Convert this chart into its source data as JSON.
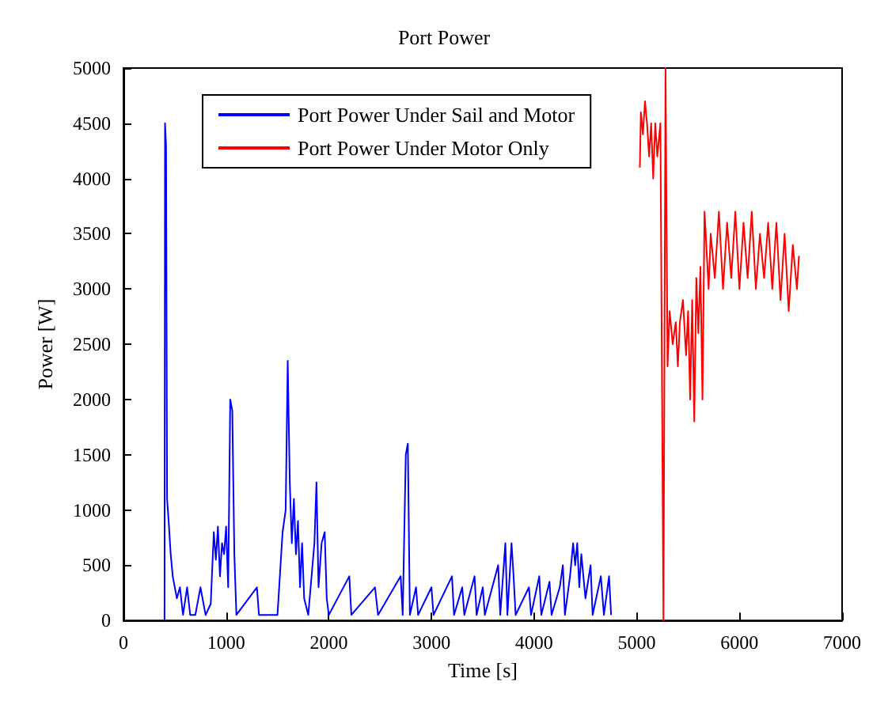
{
  "chart_data": {
    "type": "line",
    "title": "Port Power",
    "xlabel": "Time [s]",
    "ylabel": "Power [W]",
    "xlim": [
      0,
      7000
    ],
    "xticks": [
      0,
      1000,
      2000,
      3000,
      4000,
      5000,
      6000,
      7000
    ],
    "ylim": [
      0,
      5000
    ],
    "yticks": [
      0,
      500,
      1000,
      1500,
      2000,
      2500,
      3000,
      3500,
      4000,
      4500,
      5000
    ],
    "grid": false,
    "legend": "top left",
    "marker": "none",
    "line_style": "solid",
    "series": [
      {
        "name": "Port Power Under Sail and Motor",
        "color": "#0000ff",
        "x": [
          400,
          405,
          415,
          425,
          440,
          460,
          480,
          500,
          520,
          550,
          580,
          620,
          650,
          700,
          750,
          800,
          850,
          880,
          900,
          920,
          940,
          960,
          980,
          1000,
          1020,
          1040,
          1060,
          1080,
          1100,
          1300,
          1320,
          1500,
          1550,
          1580,
          1600,
          1620,
          1640,
          1660,
          1680,
          1700,
          1720,
          1740,
          1760,
          1800,
          1860,
          1880,
          1900,
          1930,
          1960,
          1980,
          2000,
          2200,
          2220,
          2450,
          2480,
          2700,
          2720,
          2750,
          2770,
          2790,
          2850,
          2870,
          3000,
          3020,
          3200,
          3220,
          3300,
          3320,
          3420,
          3440,
          3500,
          3520,
          3650,
          3670,
          3720,
          3740,
          3780,
          3800,
          3820,
          3950,
          3970,
          4050,
          4070,
          4150,
          4170,
          4250,
          4280,
          4300,
          4350,
          4380,
          4400,
          4420,
          4440,
          4460,
          4480,
          4500,
          4550,
          4570,
          4650,
          4680,
          4730,
          4750
        ],
        "values": [
          0,
          4500,
          4300,
          1100,
          900,
          600,
          400,
          300,
          200,
          300,
          50,
          300,
          50,
          50,
          300,
          50,
          150,
          800,
          550,
          850,
          400,
          700,
          600,
          850,
          300,
          2000,
          1900,
          600,
          50,
          300,
          50,
          50,
          800,
          1000,
          2350,
          1250,
          700,
          1100,
          600,
          900,
          300,
          700,
          200,
          50,
          700,
          1250,
          300,
          700,
          800,
          200,
          50,
          400,
          50,
          300,
          50,
          400,
          50,
          1500,
          1600,
          50,
          300,
          50,
          300,
          50,
          400,
          50,
          300,
          50,
          400,
          50,
          300,
          50,
          500,
          50,
          700,
          50,
          700,
          400,
          50,
          300,
          50,
          400,
          50,
          350,
          50,
          300,
          500,
          50,
          400,
          700,
          500,
          700,
          300,
          600,
          400,
          200,
          500,
          50,
          400,
          50,
          400,
          50
        ]
      },
      {
        "name": "Port Power Under Motor Only",
        "color": "#ff0000",
        "x": [
          5030,
          5040,
          5060,
          5080,
          5100,
          5120,
          5140,
          5160,
          5180,
          5200,
          5230,
          5260,
          5280,
          5300,
          5320,
          5350,
          5380,
          5400,
          5420,
          5450,
          5480,
          5500,
          5520,
          5540,
          5560,
          5580,
          5600,
          5620,
          5640,
          5660,
          5700,
          5720,
          5760,
          5800,
          5840,
          5880,
          5920,
          5960,
          6000,
          6040,
          6080,
          6120,
          6160,
          6200,
          6240,
          6280,
          6320,
          6360,
          6400,
          6440,
          6480,
          6520,
          6560,
          6580
        ],
        "values": [
          4100,
          4600,
          4400,
          4700,
          4500,
          4200,
          4500,
          4000,
          4500,
          4200,
          4500,
          0,
          5000,
          2300,
          2800,
          2500,
          2700,
          2300,
          2700,
          2900,
          2400,
          2800,
          2000,
          2900,
          1800,
          3100,
          2600,
          3200,
          2000,
          3700,
          3000,
          3500,
          3100,
          3700,
          3000,
          3600,
          3100,
          3700,
          3000,
          3600,
          3100,
          3700,
          3000,
          3500,
          3100,
          3600,
          3000,
          3600,
          2900,
          3500,
          2800,
          3400,
          3000,
          3300
        ]
      }
    ]
  }
}
